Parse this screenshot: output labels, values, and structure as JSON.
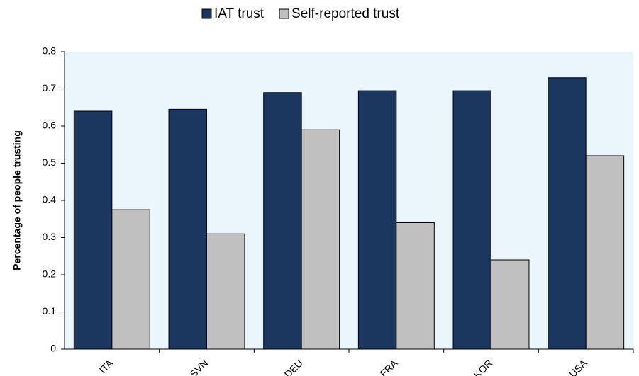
{
  "chart_data": {
    "type": "bar",
    "categories": [
      "ITA",
      "SVN",
      "DEU",
      "FRA",
      "KOR",
      "USA"
    ],
    "series": [
      {
        "name": "IAT trust",
        "color": "#1b3760",
        "values": [
          0.64,
          0.645,
          0.69,
          0.695,
          0.695,
          0.73
        ]
      },
      {
        "name": "Self-reported trust",
        "color": "#c0c0c0",
        "values": [
          0.375,
          0.31,
          0.59,
          0.34,
          0.24,
          0.52
        ]
      }
    ],
    "y_label": "Percentage of people trusting",
    "ylim": [
      0,
      0.8
    ],
    "yticks": [
      0,
      0.1,
      0.2,
      0.3,
      0.4,
      0.5,
      0.6,
      0.7,
      0.8
    ],
    "legend": "top",
    "plot_background": "#eaf6fb"
  }
}
